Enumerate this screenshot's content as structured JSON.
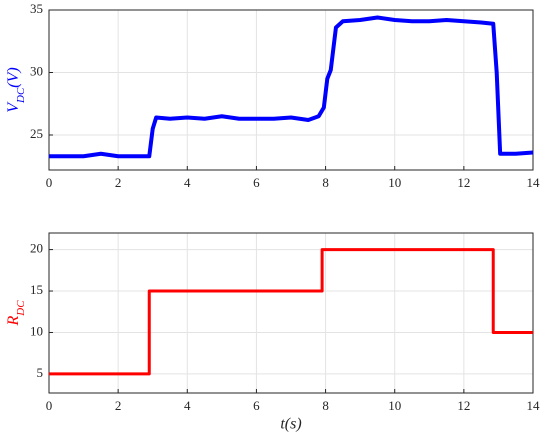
{
  "chart_data": [
    {
      "type": "line",
      "ylabel_parts": [
        "V",
        "DC",
        "(V)"
      ],
      "ylabel_color": "#0000ff",
      "series": [
        {
          "color": "#0000ff",
          "x": [
            0,
            0.5,
            1,
            1.5,
            2,
            2.5,
            2.9,
            3.0,
            3.1,
            3.5,
            4,
            4.5,
            5,
            5.5,
            6,
            6.5,
            7,
            7.5,
            7.8,
            7.95,
            8.05,
            8.15,
            8.3,
            8.5,
            9,
            9.5,
            10,
            10.5,
            11,
            11.5,
            12,
            12.5,
            12.85,
            12.95,
            13.05,
            13.5,
            14
          ],
          "values": [
            23.3,
            23.3,
            23.3,
            23.5,
            23.3,
            23.3,
            23.3,
            25.5,
            26.4,
            26.3,
            26.4,
            26.3,
            26.5,
            26.3,
            26.3,
            26.3,
            26.4,
            26.2,
            26.5,
            27.2,
            29.5,
            30.2,
            33.6,
            34.1,
            34.2,
            34.4,
            34.2,
            34.1,
            34.1,
            34.2,
            34.1,
            34.0,
            33.9,
            30,
            23.5,
            23.5,
            23.6
          ]
        }
      ],
      "xlim": [
        0,
        14
      ],
      "xticks": [
        0,
        2,
        4,
        6,
        8,
        10,
        12,
        14
      ],
      "ylim": [
        22.2,
        35
      ],
      "yticks": [
        25,
        30,
        35
      ],
      "grid": true
    },
    {
      "type": "line",
      "ylabel_parts": [
        "R",
        "DC"
      ],
      "ylabel_color": "#ff0000",
      "xlabel": "t(s)",
      "series": [
        {
          "color": "#ff0000",
          "x": [
            0,
            2.9,
            2.9,
            7.9,
            7.9,
            12.85,
            12.85,
            14
          ],
          "values": [
            5,
            5,
            15,
            15,
            20,
            20,
            10,
            10
          ]
        }
      ],
      "xlim": [
        0,
        14
      ],
      "xticks": [
        0,
        2,
        4,
        6,
        8,
        10,
        12,
        14
      ],
      "ylim": [
        2.7,
        22
      ],
      "yticks": [
        5,
        10,
        15,
        20
      ],
      "grid": true
    }
  ]
}
